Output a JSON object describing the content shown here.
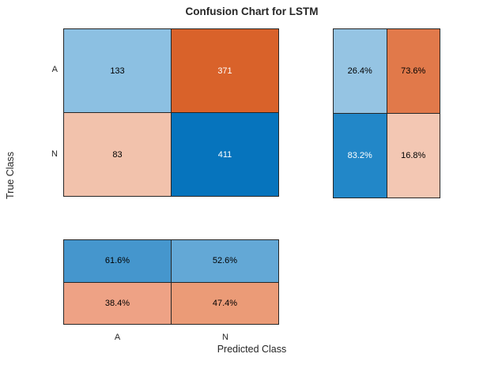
{
  "title": "Confusion Chart for LSTM",
  "axes": {
    "x_label": "Predicted Class",
    "y_label": "True Class"
  },
  "row_labels": [
    "A",
    "N"
  ],
  "col_labels": [
    "A",
    "N"
  ],
  "panels": {
    "counts": {
      "name": "count-matrix",
      "cells": [
        {
          "label": "133",
          "bg": "#8cc0e2",
          "fg": "#000000"
        },
        {
          "label": "371",
          "bg": "#d9622a",
          "fg": "#ffffff"
        },
        {
          "label": "83",
          "bg": "#f2c2ac",
          "fg": "#000000"
        },
        {
          "label": "411",
          "bg": "#0674bd",
          "fg": "#ffffff"
        }
      ]
    },
    "row_summary": {
      "name": "row-normalized-summary",
      "cells": [
        {
          "label": "26.4%",
          "bg": "#95c4e3",
          "fg": "#000000"
        },
        {
          "label": "73.6%",
          "bg": "#e1794a",
          "fg": "#000000"
        },
        {
          "label": "83.2%",
          "bg": "#2287c8",
          "fg": "#ffffff"
        },
        {
          "label": "16.8%",
          "bg": "#f3c7b3",
          "fg": "#000000"
        }
      ]
    },
    "col_summary": {
      "name": "column-normalized-summary",
      "cells": [
        {
          "label": "61.6%",
          "bg": "#4596cd",
          "fg": "#000000"
        },
        {
          "label": "52.6%",
          "bg": "#63a8d6",
          "fg": "#000000"
        },
        {
          "label": "38.4%",
          "bg": "#eea285",
          "fg": "#000000"
        },
        {
          "label": "47.4%",
          "bg": "#eb9b77",
          "fg": "#000000"
        }
      ]
    }
  },
  "colors": {
    "border": "#262626",
    "background": "#ffffff",
    "text": "#262626",
    "diverging_positive": "#0674bd",
    "diverging_negative": "#d9622a"
  },
  "chart_data": {
    "type": "heatmap",
    "subtype": "confusion-matrix",
    "title": "Confusion Chart for LSTM",
    "xlabel": "Predicted Class",
    "ylabel": "True Class",
    "classes": [
      "A",
      "N"
    ],
    "counts": [
      [
        133,
        371
      ],
      [
        83,
        411
      ]
    ],
    "row_normalized_pct": [
      [
        26.4,
        73.6
      ],
      [
        83.2,
        16.8
      ]
    ],
    "column_normalized_pct": [
      [
        61.6,
        52.6
      ],
      [
        38.4,
        47.4
      ]
    ],
    "legend": "none",
    "grid": "off",
    "colormap": "blue-orange diverging",
    "layout": "main matrix top-left, row-normalized panel right, column-normalized panel bottom"
  }
}
